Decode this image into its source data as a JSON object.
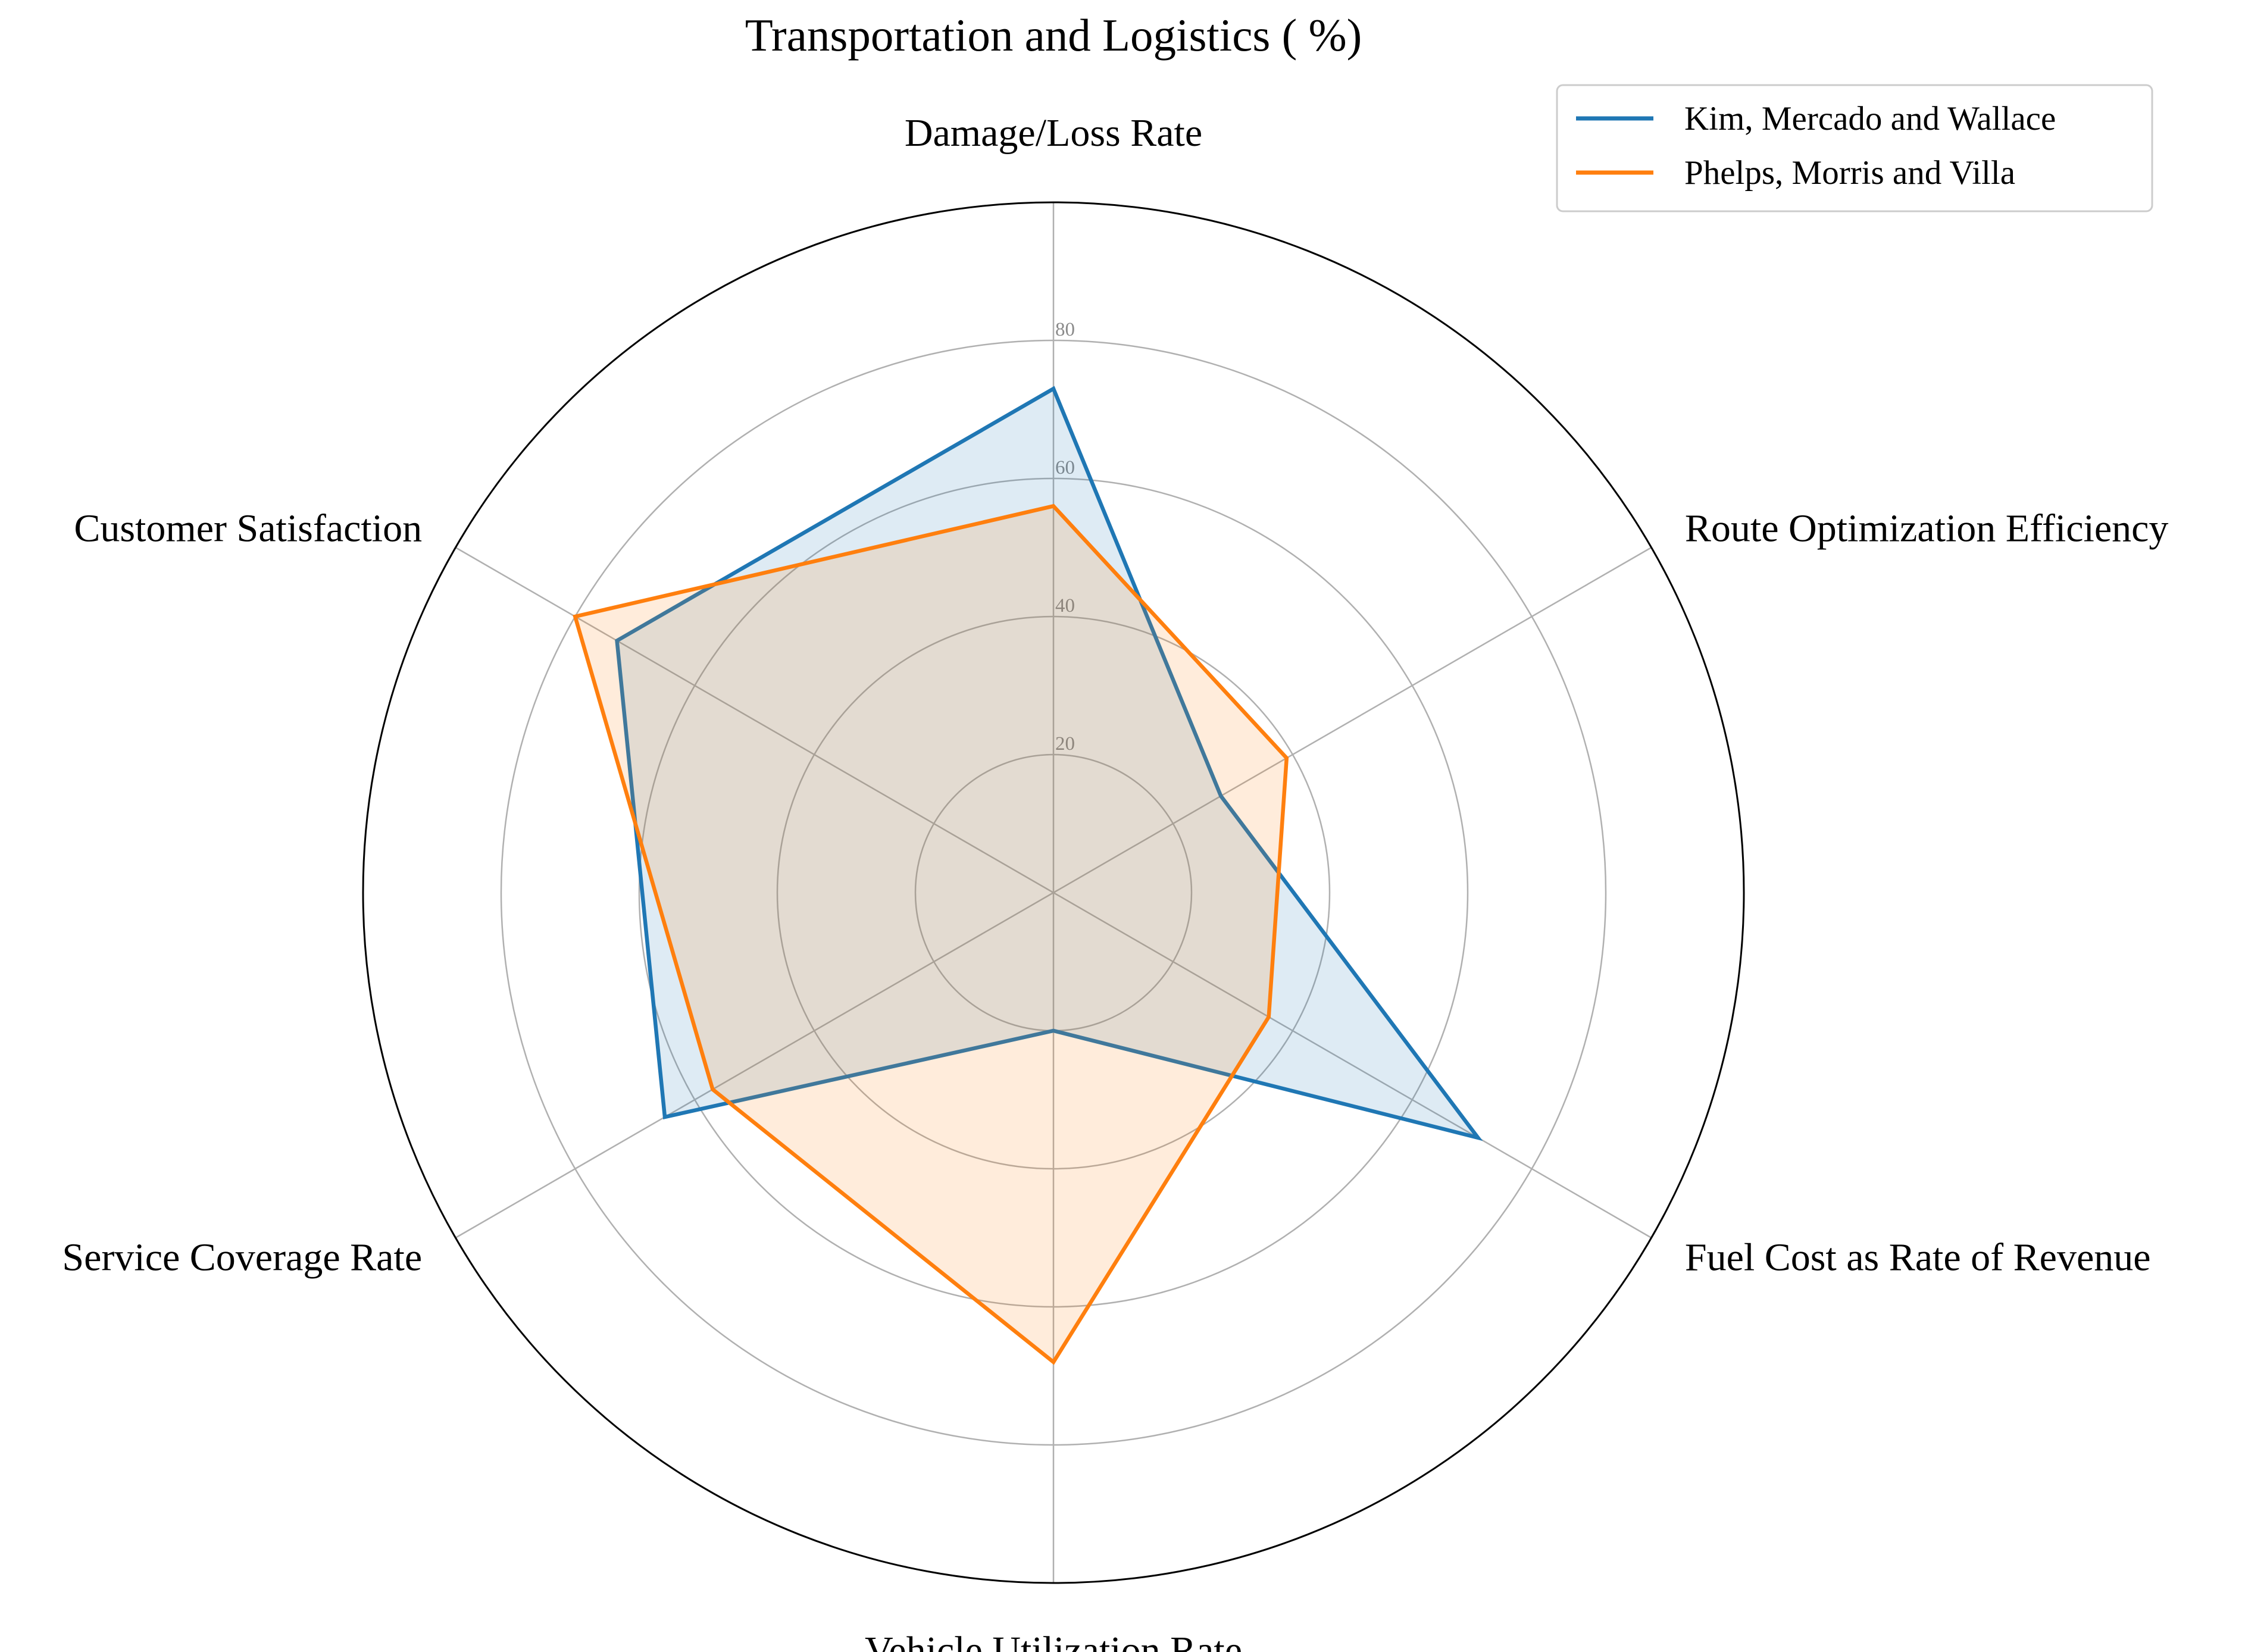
{
  "chart_data": {
    "type": "radar",
    "title": "Transportation and Logistics ( %)",
    "axes": [
      "Damage/Loss Rate",
      "Route Optimization Efficiency",
      "Fuel Cost as Rate of Revenue",
      "Vehicle Utilization Rate",
      "Service Coverage Rate",
      "Customer Satisfaction"
    ],
    "rlim": [
      0,
      100
    ],
    "r_ticks": [
      20,
      40,
      60,
      80
    ],
    "r_tick_labels": [
      "20",
      "40",
      "60",
      "80"
    ],
    "grid": true,
    "legend_position": "top-right",
    "series": [
      {
        "name": "Kim, Mercado and Wallace",
        "color": "#1f77b4",
        "values": [
          73,
          28,
          71,
          20,
          65,
          73
        ]
      },
      {
        "name": "Phelps, Morris and Villa",
        "color": "#ff7f0e",
        "values": [
          56,
          39,
          36,
          68,
          57,
          80
        ]
      }
    ]
  }
}
